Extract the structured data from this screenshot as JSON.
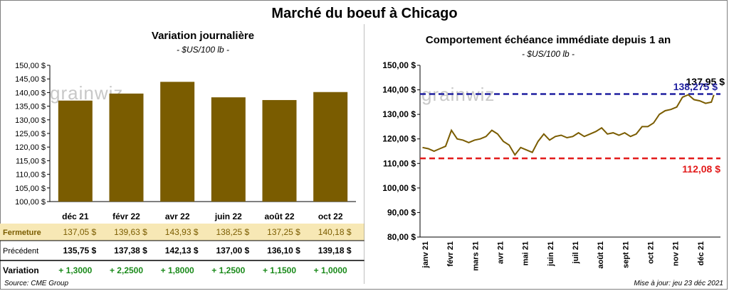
{
  "title": "Marché du boeuf à Chicago",
  "watermark": "grainwiz",
  "left": {
    "title": "Variation journalière",
    "subtitle": "- $US/100 lb -",
    "rows": {
      "close_label": "Fermeture",
      "prev_label": "Précédent",
      "var_label": "Variation",
      "close": [
        "137,05  $",
        "139,63  $",
        "143,93  $",
        "138,25  $",
        "137,25  $",
        "140,18  $"
      ],
      "prev": [
        "135,75  $",
        "137,38  $",
        "142,13  $",
        "137,00  $",
        "136,10  $",
        "139,18  $"
      ],
      "var": [
        "+ 1,3000",
        "+ 2,2500",
        "+ 1,8000",
        "+ 1,2500",
        "+ 1,1500",
        "+ 1,0000"
      ]
    }
  },
  "right": {
    "title": "Comportement  échéance immédiate depuis 1 an",
    "subtitle": "- $US/100 lb -",
    "annotations": {
      "current": "137,95 $",
      "max": "138,275 $",
      "min": "112,08 $"
    }
  },
  "footer": {
    "source": "Source: CME Group",
    "updated": "Mise à jour: jeu 23 déc 2021"
  },
  "colors": {
    "bar": "#7a5c00",
    "line": "#7a5c00",
    "max_line": "#1f1fa0",
    "min_line": "#e21a1a",
    "close_row_bg": "#f7e8b5",
    "positive": "#1a8a1a"
  },
  "chart_data": [
    {
      "type": "bar",
      "title": "Variation journalière",
      "subtitle": "- $US/100 lb -",
      "categories": [
        "déc 21",
        "févr 22",
        "avr 22",
        "juin 22",
        "août 22",
        "oct 22"
      ],
      "values": [
        137.05,
        139.63,
        143.93,
        138.25,
        137.25,
        140.18
      ],
      "ylim": [
        100,
        150
      ],
      "yticks": [
        "100,00 $",
        "105,00 $",
        "110,00 $",
        "115,00 $",
        "120,00 $",
        "125,00 $",
        "130,00 $",
        "135,00 $",
        "140,00 $",
        "145,00 $",
        "150,00 $"
      ],
      "grid": false
    },
    {
      "type": "line",
      "title": "Comportement  échéance immédiate depuis 1 an",
      "subtitle": "- $US/100 lb -",
      "ylim": [
        80,
        150
      ],
      "yticks": [
        "80,00 $",
        "90,00 $",
        "100,00 $",
        "110,00 $",
        "120,00 $",
        "130,00 $",
        "140,00 $",
        "150,00 $"
      ],
      "xticks": [
        "janv 21",
        "févr 21",
        "mars 21",
        "avr 21",
        "mai 21",
        "juin 21",
        "juil 21",
        "août 21",
        "sept 21",
        "oct 21",
        "nov 21",
        "déc 21"
      ],
      "x": [
        "2021-01-04",
        "2021-01-11",
        "2021-01-18",
        "2021-01-25",
        "2021-02-01",
        "2021-02-08",
        "2021-02-15",
        "2021-02-22",
        "2021-03-01",
        "2021-03-08",
        "2021-03-15",
        "2021-03-22",
        "2021-03-29",
        "2021-04-05",
        "2021-04-12",
        "2021-04-19",
        "2021-04-26",
        "2021-05-03",
        "2021-05-10",
        "2021-05-17",
        "2021-05-24",
        "2021-05-31",
        "2021-06-07",
        "2021-06-14",
        "2021-06-21",
        "2021-06-28",
        "2021-07-05",
        "2021-07-12",
        "2021-07-19",
        "2021-07-26",
        "2021-08-02",
        "2021-08-09",
        "2021-08-16",
        "2021-08-23",
        "2021-08-30",
        "2021-09-06",
        "2021-09-13",
        "2021-09-20",
        "2021-09-27",
        "2021-10-04",
        "2021-10-11",
        "2021-10-18",
        "2021-10-25",
        "2021-11-01",
        "2021-11-08",
        "2021-11-15",
        "2021-11-22",
        "2021-11-29",
        "2021-12-06",
        "2021-12-13",
        "2021-12-20",
        "2021-12-23"
      ],
      "values": [
        116.5,
        116.0,
        115.0,
        116.0,
        117.0,
        123.5,
        120.0,
        119.5,
        118.5,
        119.5,
        120.0,
        121.0,
        123.5,
        122.0,
        119.0,
        117.5,
        113.5,
        116.5,
        115.5,
        114.5,
        119.0,
        122.0,
        119.5,
        121.0,
        121.5,
        120.5,
        121.0,
        122.5,
        121.0,
        122.0,
        123.0,
        124.5,
        122.0,
        122.5,
        121.5,
        122.5,
        121.0,
        122.0,
        125.0,
        125.0,
        126.5,
        130.0,
        131.5,
        132.0,
        133.0,
        137.0,
        138.0,
        136.0,
        135.5,
        134.5,
        135.0,
        137.95
      ],
      "reference_lines": [
        {
          "value": 138.275,
          "label": "138,275 $",
          "style": "dashed",
          "color": "#1f1fa0"
        },
        {
          "value": 112.08,
          "label": "112,08 $",
          "style": "dashed",
          "color": "#e21a1a"
        }
      ],
      "grid": false
    }
  ]
}
